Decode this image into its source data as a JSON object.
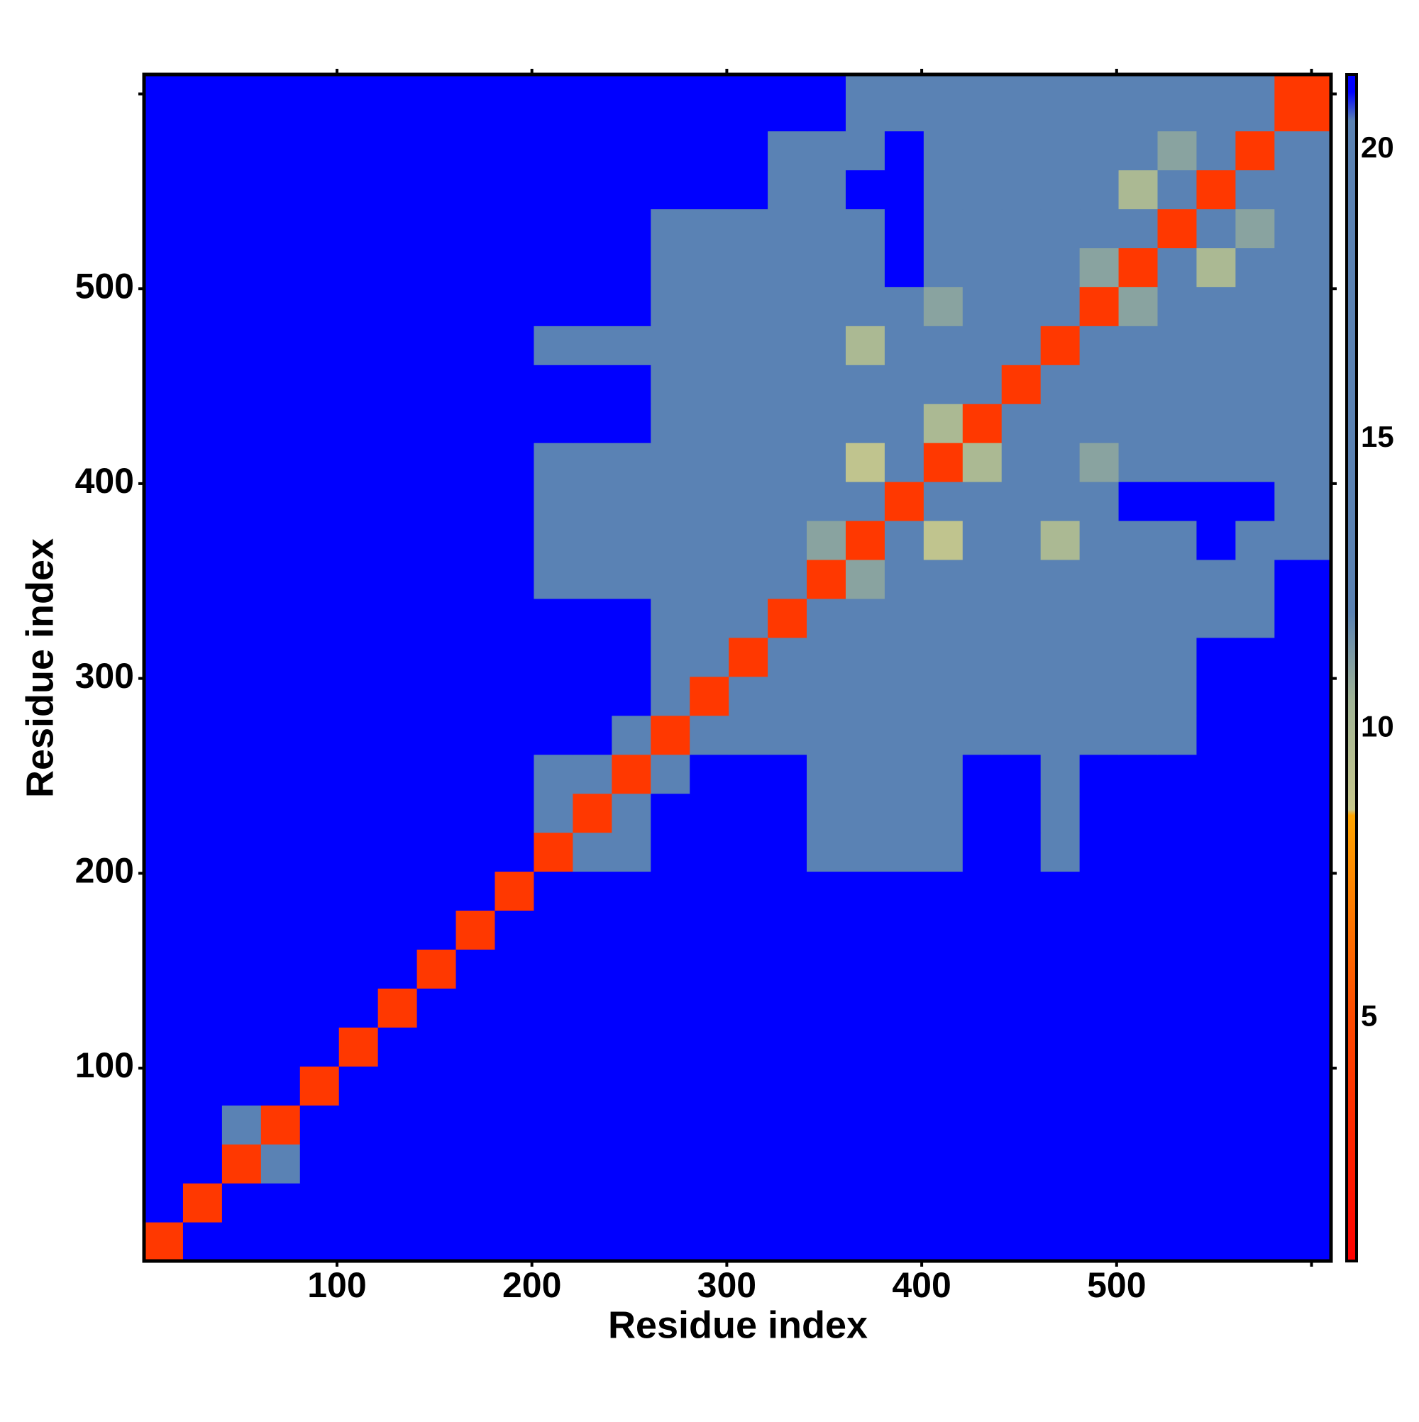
{
  "chart_data": {
    "type": "heatmap",
    "xlabel": "Residue index",
    "ylabel": "Residue index",
    "bins": [
      1,
      21,
      41,
      61,
      81,
      101,
      121,
      141,
      161,
      181,
      201,
      221,
      241,
      261,
      281,
      301,
      321,
      341,
      361,
      381,
      401,
      421,
      441,
      461,
      481,
      501,
      521,
      541,
      561,
      581,
      610
    ],
    "z": [
      [
        4,
        22,
        22,
        22,
        22,
        22,
        22,
        22,
        22,
        22,
        22,
        22,
        22,
        22,
        22,
        22,
        22,
        22,
        22,
        22,
        22,
        22,
        22,
        22,
        22,
        22,
        22,
        22,
        22,
        22
      ],
      [
        22,
        4,
        22,
        22,
        22,
        22,
        22,
        22,
        22,
        22,
        22,
        22,
        22,
        22,
        22,
        22,
        22,
        22,
        22,
        22,
        22,
        22,
        22,
        22,
        22,
        22,
        22,
        22,
        22,
        22
      ],
      [
        22,
        22,
        4,
        13,
        22,
        22,
        22,
        22,
        22,
        22,
        22,
        22,
        22,
        22,
        22,
        22,
        22,
        22,
        22,
        22,
        22,
        22,
        22,
        22,
        22,
        22,
        22,
        22,
        22,
        22
      ],
      [
        22,
        22,
        13,
        4,
        22,
        22,
        22,
        22,
        22,
        22,
        22,
        22,
        22,
        22,
        22,
        22,
        22,
        22,
        22,
        22,
        22,
        22,
        22,
        22,
        22,
        22,
        22,
        22,
        22,
        22
      ],
      [
        22,
        22,
        22,
        22,
        4,
        22,
        22,
        22,
        22,
        22,
        22,
        22,
        22,
        22,
        22,
        22,
        22,
        22,
        22,
        22,
        22,
        22,
        22,
        22,
        22,
        22,
        22,
        22,
        22,
        22
      ],
      [
        22,
        22,
        22,
        22,
        22,
        4,
        22,
        22,
        22,
        22,
        22,
        22,
        22,
        22,
        22,
        22,
        22,
        22,
        22,
        22,
        22,
        22,
        22,
        22,
        22,
        22,
        22,
        22,
        22,
        22
      ],
      [
        22,
        22,
        22,
        22,
        22,
        22,
        4,
        22,
        22,
        22,
        22,
        22,
        22,
        22,
        22,
        22,
        22,
        22,
        22,
        22,
        22,
        22,
        22,
        22,
        22,
        22,
        22,
        22,
        22,
        22
      ],
      [
        22,
        22,
        22,
        22,
        22,
        22,
        22,
        4,
        22,
        22,
        22,
        22,
        22,
        22,
        22,
        22,
        22,
        22,
        22,
        22,
        22,
        22,
        22,
        22,
        22,
        22,
        22,
        22,
        22,
        22
      ],
      [
        22,
        22,
        22,
        22,
        22,
        22,
        22,
        22,
        4,
        22,
        22,
        22,
        22,
        22,
        22,
        22,
        22,
        22,
        22,
        22,
        22,
        22,
        22,
        22,
        22,
        22,
        22,
        22,
        22,
        22
      ],
      [
        22,
        22,
        22,
        22,
        22,
        22,
        22,
        22,
        22,
        4,
        22,
        22,
        22,
        22,
        22,
        22,
        22,
        22,
        22,
        22,
        22,
        22,
        22,
        22,
        22,
        22,
        22,
        22,
        22,
        22
      ],
      [
        22,
        22,
        22,
        22,
        22,
        22,
        22,
        22,
        22,
        22,
        4,
        13,
        13,
        22,
        22,
        22,
        22,
        19,
        19,
        19,
        19,
        22,
        22,
        19,
        22,
        22,
        22,
        22,
        22,
        22
      ],
      [
        22,
        22,
        22,
        22,
        22,
        22,
        22,
        22,
        22,
        22,
        13,
        4,
        13,
        22,
        22,
        22,
        22,
        19,
        19,
        19,
        19,
        22,
        22,
        19,
        22,
        22,
        22,
        22,
        22,
        22
      ],
      [
        22,
        22,
        22,
        22,
        22,
        22,
        22,
        22,
        22,
        22,
        13,
        13,
        4,
        16,
        22,
        22,
        22,
        19,
        19,
        19,
        19,
        22,
        22,
        19,
        22,
        22,
        22,
        22,
        22,
        22
      ],
      [
        22,
        22,
        22,
        22,
        22,
        22,
        22,
        22,
        22,
        22,
        22,
        22,
        16,
        4,
        13,
        13,
        13,
        17,
        17,
        17,
        17,
        17,
        19,
        19,
        19,
        19,
        19,
        22,
        22,
        22
      ],
      [
        22,
        22,
        22,
        22,
        22,
        22,
        22,
        22,
        22,
        22,
        22,
        22,
        22,
        13,
        4,
        13,
        13,
        17,
        17,
        17,
        17,
        17,
        19,
        19,
        19,
        19,
        19,
        22,
        22,
        22
      ],
      [
        22,
        22,
        22,
        22,
        22,
        22,
        22,
        22,
        22,
        22,
        22,
        22,
        22,
        13,
        13,
        4,
        13,
        17,
        17,
        17,
        17,
        17,
        19,
        19,
        19,
        19,
        19,
        22,
        22,
        22
      ],
      [
        22,
        22,
        22,
        22,
        22,
        22,
        22,
        22,
        22,
        22,
        22,
        22,
        22,
        13,
        13,
        13,
        4,
        15,
        15,
        15,
        15,
        15,
        15,
        15,
        15,
        15,
        15,
        15,
        15,
        22
      ],
      [
        22,
        22,
        22,
        22,
        22,
        22,
        22,
        22,
        22,
        22,
        19,
        19,
        19,
        17,
        17,
        17,
        15,
        4,
        11,
        15,
        15,
        15,
        15,
        15,
        15,
        15,
        15,
        15,
        15,
        22
      ],
      [
        22,
        22,
        22,
        22,
        22,
        22,
        22,
        22,
        22,
        22,
        19,
        19,
        19,
        17,
        17,
        17,
        15,
        11,
        4,
        15,
        9,
        15,
        15,
        10,
        15,
        12,
        15,
        22,
        15,
        19
      ],
      [
        22,
        22,
        22,
        22,
        22,
        22,
        22,
        22,
        22,
        22,
        19,
        19,
        19,
        17,
        17,
        17,
        15,
        15,
        15,
        4,
        15,
        15,
        15,
        15,
        15,
        22,
        22,
        22,
        22,
        19
      ],
      [
        22,
        22,
        22,
        22,
        22,
        22,
        22,
        22,
        22,
        22,
        19,
        19,
        19,
        17,
        17,
        17,
        15,
        15,
        9,
        15,
        4,
        10,
        15,
        15,
        11,
        15,
        15,
        15,
        15,
        19
      ],
      [
        22,
        22,
        22,
        22,
        22,
        22,
        22,
        22,
        22,
        22,
        22,
        22,
        22,
        17,
        17,
        17,
        15,
        15,
        15,
        15,
        10,
        4,
        15,
        15,
        15,
        15,
        15,
        15,
        15,
        19
      ],
      [
        22,
        22,
        22,
        22,
        22,
        22,
        22,
        22,
        22,
        22,
        22,
        22,
        22,
        19,
        19,
        19,
        15,
        15,
        15,
        15,
        15,
        15,
        4,
        15,
        15,
        15,
        15,
        15,
        12,
        19
      ],
      [
        22,
        22,
        22,
        22,
        22,
        22,
        22,
        22,
        22,
        22,
        19,
        19,
        19,
        19,
        19,
        19,
        15,
        15,
        10,
        15,
        15,
        15,
        15,
        4,
        15,
        15,
        15,
        15,
        15,
        19
      ],
      [
        22,
        22,
        22,
        22,
        22,
        22,
        22,
        22,
        22,
        22,
        22,
        22,
        22,
        19,
        19,
        19,
        15,
        15,
        15,
        15,
        11,
        15,
        15,
        15,
        4,
        11,
        15,
        15,
        15,
        19
      ],
      [
        22,
        22,
        22,
        22,
        22,
        22,
        22,
        22,
        22,
        22,
        22,
        22,
        22,
        19,
        19,
        19,
        15,
        15,
        12,
        22,
        15,
        15,
        15,
        15,
        11,
        4,
        15,
        10,
        15,
        19
      ],
      [
        22,
        22,
        22,
        22,
        22,
        22,
        22,
        22,
        22,
        22,
        22,
        22,
        22,
        19,
        19,
        19,
        15,
        15,
        15,
        22,
        15,
        15,
        15,
        15,
        15,
        15,
        4,
        15,
        11,
        19
      ],
      [
        22,
        22,
        22,
        22,
        22,
        22,
        22,
        22,
        22,
        22,
        22,
        22,
        22,
        22,
        22,
        22,
        15,
        15,
        22,
        22,
        15,
        15,
        15,
        15,
        15,
        10,
        15,
        4,
        15,
        19
      ],
      [
        22,
        22,
        22,
        22,
        22,
        22,
        22,
        22,
        22,
        22,
        22,
        22,
        22,
        22,
        22,
        22,
        15,
        15,
        15,
        22,
        15,
        15,
        12,
        15,
        15,
        15,
        11,
        15,
        4,
        13
      ],
      [
        22,
        22,
        22,
        22,
        22,
        22,
        22,
        22,
        22,
        22,
        22,
        22,
        22,
        22,
        22,
        22,
        22,
        22,
        19,
        19,
        19,
        19,
        19,
        19,
        19,
        19,
        19,
        19,
        13,
        4
      ]
    ],
    "xlim": [
      1,
      610
    ],
    "ylim": [
      1,
      610
    ],
    "xticks": [
      100,
      200,
      300,
      400,
      500,
      {
        "value": 600,
        "label": null
      }
    ],
    "yticks": [
      100,
      200,
      300,
      400,
      500,
      {
        "value": 600,
        "label": null
      }
    ],
    "zlim": [
      0.8,
      21.3
    ],
    "zticks": [
      5,
      10,
      15,
      20
    ],
    "colorscale": [
      [
        0.8,
        "#ff0000"
      ],
      [
        5,
        "#ff4a00"
      ],
      [
        8.5,
        "#ffa500"
      ],
      [
        8.6,
        "#c8c88c"
      ],
      [
        10.5,
        "#a0b496"
      ],
      [
        12,
        "#5a82b4"
      ],
      [
        20.5,
        "#5a82b4"
      ],
      [
        21,
        "#0000ff"
      ],
      [
        21.3,
        "#0000ff"
      ]
    ]
  }
}
